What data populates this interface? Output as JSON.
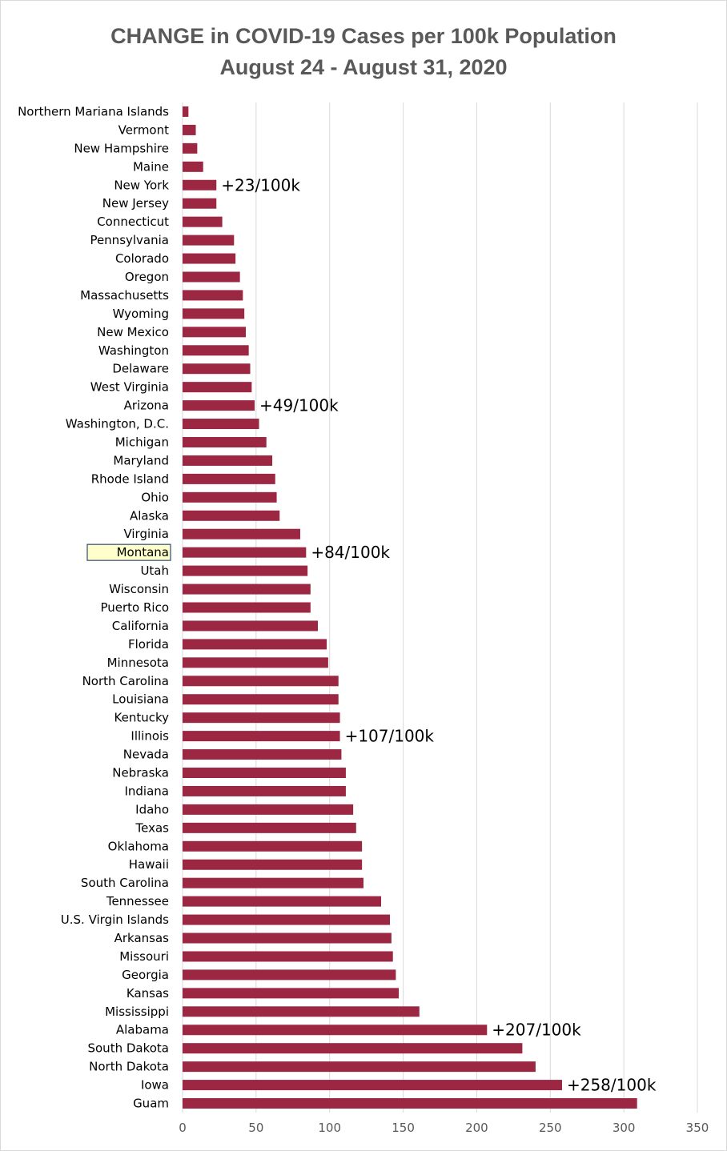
{
  "chart_data": {
    "type": "bar",
    "orientation": "horizontal",
    "title": "CHANGE in COVID-19 Cases per 100k Population",
    "subtitle": "August 24 - August 31, 2020",
    "xlabel": "",
    "ylabel": "",
    "xlim": [
      0,
      350
    ],
    "x_ticks": [
      0,
      50,
      100,
      150,
      200,
      250,
      300,
      350
    ],
    "grid": "vertical",
    "bar_color": "#9b2743",
    "highlight": {
      "category": "Montana",
      "fill": "#ffffcc",
      "border": "#2e4b6e",
      "text_color": "#595959"
    },
    "categories": [
      "Northern Mariana Islands",
      "Vermont",
      "New Hampshire",
      "Maine",
      "New York",
      "New Jersey",
      "Connecticut",
      "Pennsylvania",
      "Colorado",
      "Oregon",
      "Massachusetts",
      "Wyoming",
      "New Mexico",
      "Washington",
      "Delaware",
      "West Virginia",
      "Arizona",
      "Washington, D.C.",
      "Michigan",
      "Maryland",
      "Rhode Island",
      "Ohio",
      "Alaska",
      "Virginia",
      "Montana",
      "Utah",
      "Wisconsin",
      "Puerto Rico",
      "California",
      "Florida",
      "Minnesota",
      "North Carolina",
      "Louisiana",
      "Kentucky",
      "Illinois",
      "Nevada",
      "Nebraska",
      "Indiana",
      "Idaho",
      "Texas",
      "Oklahoma",
      "Hawaii",
      "South Carolina",
      "Tennessee",
      "U.S. Virgin Islands",
      "Arkansas",
      "Missouri",
      "Georgia",
      "Kansas",
      "Mississippi",
      "Alabama",
      "South Dakota",
      "North Dakota",
      "Iowa",
      "Guam"
    ],
    "values": [
      4,
      9,
      10,
      14,
      23,
      23,
      27,
      35,
      36,
      39,
      41,
      42,
      43,
      45,
      46,
      47,
      49,
      52,
      57,
      61,
      63,
      64,
      66,
      80,
      84,
      85,
      87,
      87,
      92,
      98,
      99,
      106,
      106,
      107,
      107,
      108,
      111,
      111,
      116,
      118,
      122,
      122,
      123,
      135,
      141,
      142,
      143,
      145,
      147,
      161,
      207,
      231,
      240,
      258,
      309
    ],
    "annotations": [
      {
        "category": "New York",
        "text": "+23/100k"
      },
      {
        "category": "Arizona",
        "text": "+49/100k"
      },
      {
        "category": "Montana",
        "text": "+84/100k"
      },
      {
        "category": "Illinois",
        "text": "+107/100k"
      },
      {
        "category": "Alabama",
        "text": "+207/100k"
      },
      {
        "category": "Iowa",
        "text": "+258/100k"
      }
    ]
  }
}
